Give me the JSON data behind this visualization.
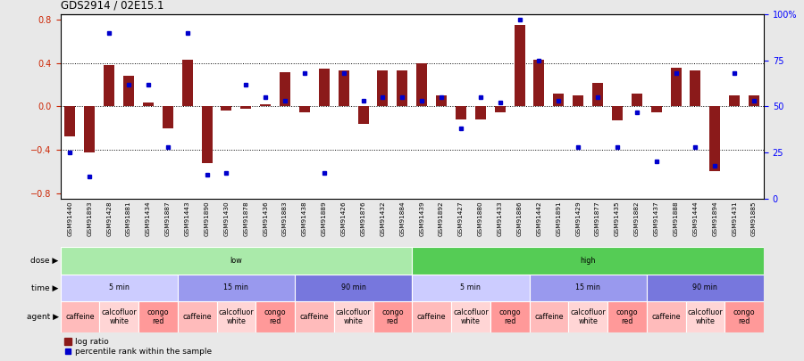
{
  "title": "GDS2914 / 02E15.1",
  "samples": [
    "GSM91440",
    "GSM91893",
    "GSM91428",
    "GSM91881",
    "GSM91434",
    "GSM91887",
    "GSM91443",
    "GSM91890",
    "GSM91430",
    "GSM91878",
    "GSM91436",
    "GSM91883",
    "GSM91438",
    "GSM91889",
    "GSM91426",
    "GSM91876",
    "GSM91432",
    "GSM91884",
    "GSM91439",
    "GSM91892",
    "GSM91427",
    "GSM91880",
    "GSM91433",
    "GSM91886",
    "GSM91442",
    "GSM91891",
    "GSM91429",
    "GSM91877",
    "GSM91435",
    "GSM91882",
    "GSM91437",
    "GSM91888",
    "GSM91444",
    "GSM91894",
    "GSM91431",
    "GSM91885"
  ],
  "log_ratio": [
    -0.28,
    -0.42,
    0.38,
    0.28,
    0.04,
    -0.2,
    0.43,
    -0.52,
    -0.04,
    -0.02,
    0.02,
    0.32,
    -0.05,
    0.35,
    0.33,
    -0.16,
    0.33,
    0.33,
    0.4,
    0.1,
    -0.12,
    -0.12,
    -0.05,
    0.75,
    0.43,
    0.12,
    0.1,
    0.22,
    -0.13,
    0.12,
    -0.05,
    0.36,
    0.33,
    -0.6,
    0.1,
    0.1
  ],
  "percentile": [
    25,
    12,
    90,
    62,
    62,
    28,
    90,
    13,
    14,
    62,
    55,
    53,
    68,
    14,
    68,
    53,
    55,
    55,
    53,
    55,
    38,
    55,
    52,
    97,
    75,
    53,
    28,
    55,
    28,
    47,
    20,
    68,
    28,
    18,
    68,
    53
  ],
  "bar_color": "#8B1A1A",
  "dot_color": "#0000CC",
  "ylim_left": [
    -0.85,
    0.85
  ],
  "ylim_right": [
    0,
    100
  ],
  "yticks_left": [
    -0.8,
    -0.4,
    0.0,
    0.4,
    0.8
  ],
  "yticks_right": [
    0,
    25,
    50,
    75,
    100
  ],
  "ytick_labels_right": [
    "0",
    "25",
    "50",
    "75",
    "100%"
  ],
  "hlines": [
    -0.4,
    0.0,
    0.4
  ],
  "dose_regions": [
    {
      "label": "low",
      "start": 0,
      "end": 18,
      "color": "#AAEAAA"
    },
    {
      "label": "high",
      "start": 18,
      "end": 36,
      "color": "#55CC55"
    }
  ],
  "time_regions": [
    {
      "label": "5 min",
      "start": 0,
      "end": 6,
      "color": "#CCCCFF"
    },
    {
      "label": "15 min",
      "start": 6,
      "end": 12,
      "color": "#9999EE"
    },
    {
      "label": "90 min",
      "start": 12,
      "end": 18,
      "color": "#7777DD"
    },
    {
      "label": "5 min",
      "start": 18,
      "end": 24,
      "color": "#CCCCFF"
    },
    {
      "label": "15 min",
      "start": 24,
      "end": 30,
      "color": "#9999EE"
    },
    {
      "label": "90 min",
      "start": 30,
      "end": 36,
      "color": "#7777DD"
    }
  ],
  "agent_regions": [
    {
      "label": "caffeine",
      "start": 0,
      "end": 2,
      "color": "#FFBBBB"
    },
    {
      "label": "calcofluor\nwhite",
      "start": 2,
      "end": 4,
      "color": "#FFD5D5"
    },
    {
      "label": "congo\nred",
      "start": 4,
      "end": 6,
      "color": "#FF9999"
    },
    {
      "label": "caffeine",
      "start": 6,
      "end": 8,
      "color": "#FFBBBB"
    },
    {
      "label": "calcofluor\nwhite",
      "start": 8,
      "end": 10,
      "color": "#FFD5D5"
    },
    {
      "label": "congo\nred",
      "start": 10,
      "end": 12,
      "color": "#FF9999"
    },
    {
      "label": "caffeine",
      "start": 12,
      "end": 14,
      "color": "#FFBBBB"
    },
    {
      "label": "calcofluor\nwhite",
      "start": 14,
      "end": 16,
      "color": "#FFD5D5"
    },
    {
      "label": "congo\nred",
      "start": 16,
      "end": 18,
      "color": "#FF9999"
    },
    {
      "label": "caffeine",
      "start": 18,
      "end": 20,
      "color": "#FFBBBB"
    },
    {
      "label": "calcofluor\nwhite",
      "start": 20,
      "end": 22,
      "color": "#FFD5D5"
    },
    {
      "label": "congo\nred",
      "start": 22,
      "end": 24,
      "color": "#FF9999"
    },
    {
      "label": "caffeine",
      "start": 24,
      "end": 26,
      "color": "#FFBBBB"
    },
    {
      "label": "calcofluor\nwhite",
      "start": 26,
      "end": 28,
      "color": "#FFD5D5"
    },
    {
      "label": "congo\nred",
      "start": 28,
      "end": 30,
      "color": "#FF9999"
    },
    {
      "label": "caffeine",
      "start": 30,
      "end": 32,
      "color": "#FFBBBB"
    },
    {
      "label": "calcofluor\nwhite",
      "start": 32,
      "end": 34,
      "color": "#FFD5D5"
    },
    {
      "label": "congo\nred",
      "start": 34,
      "end": 36,
      "color": "#FF9999"
    }
  ],
  "bg_color": "#E8E8E8",
  "plot_bg": "#FFFFFF",
  "xtick_bg": "#D0D0D0"
}
